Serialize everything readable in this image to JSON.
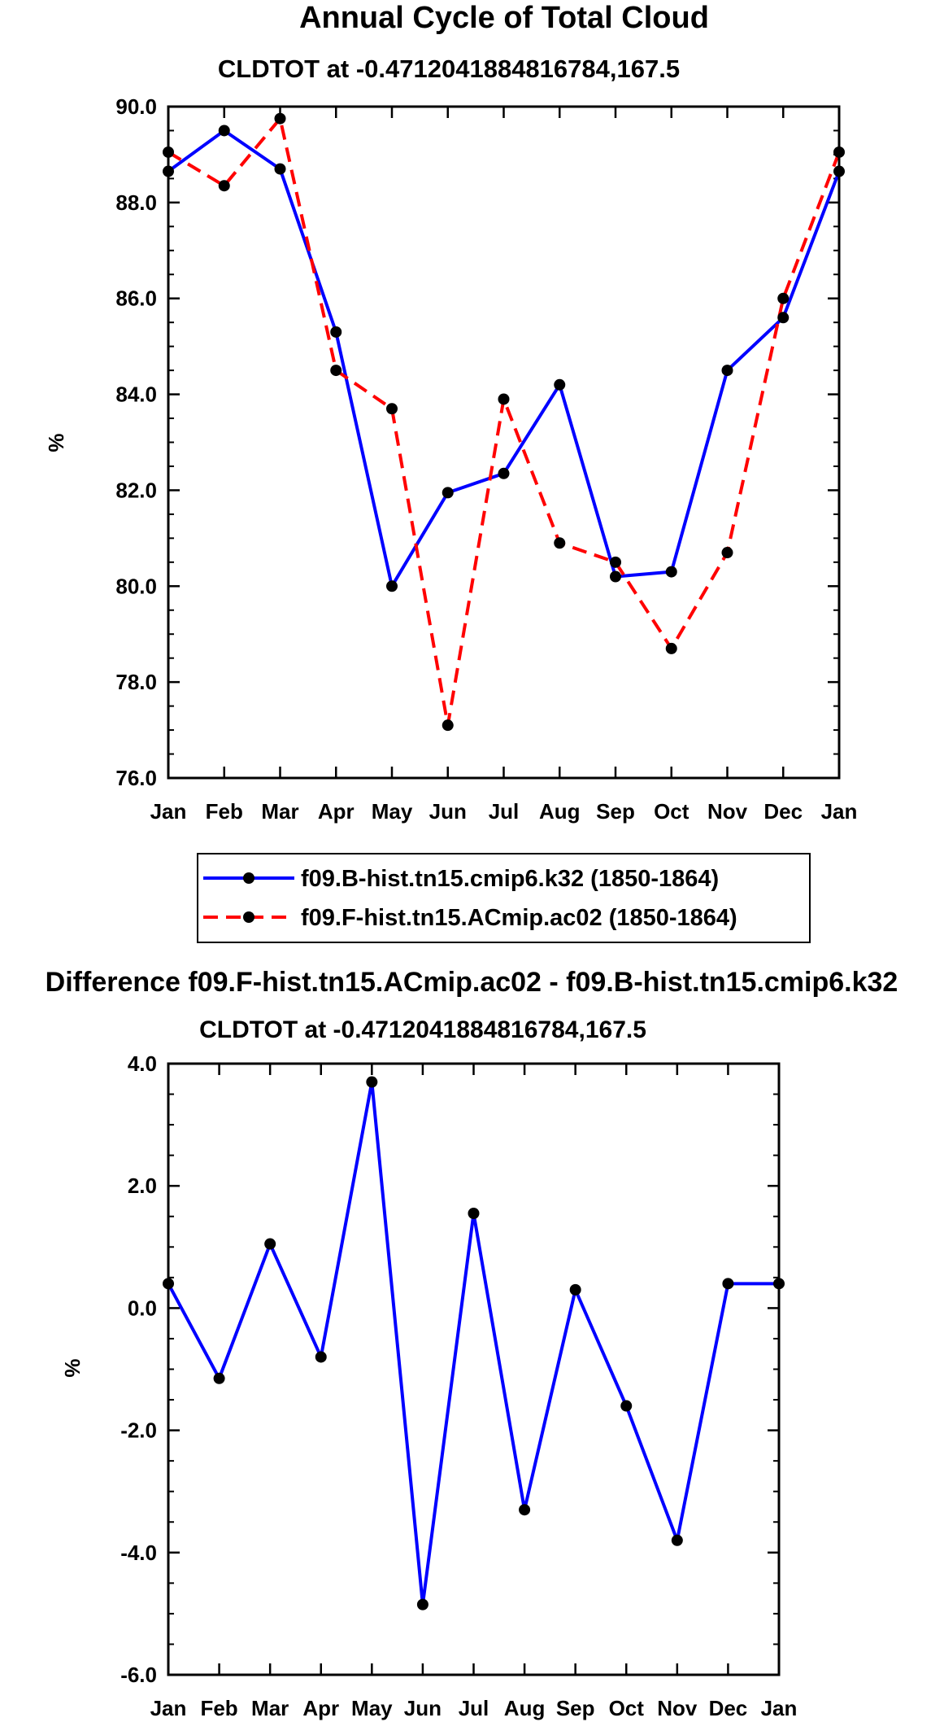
{
  "chart_data": [
    {
      "type": "line",
      "title": "Annual Cycle of Total Cloud",
      "subtitle": "CLDTOT at -0.4712041884816784,167.5",
      "xlabel": "",
      "ylabel": "%",
      "categories": [
        "Jan",
        "Feb",
        "Mar",
        "Apr",
        "May",
        "Jun",
        "Jul",
        "Aug",
        "Sep",
        "Oct",
        "Nov",
        "Dec",
        "Jan"
      ],
      "ylim": [
        76.0,
        90.0
      ],
      "yticks": [
        76.0,
        78.0,
        80.0,
        82.0,
        84.0,
        86.0,
        88.0,
        90.0
      ],
      "ytick_labels": [
        "76.0",
        "78.0",
        "80.0",
        "82.0",
        "84.0",
        "86.0",
        "88.0",
        "90.0"
      ],
      "legend_position": "bottom",
      "series": [
        {
          "name": "f09.B-hist.tn15.cmip6.k32 (1850-1864)",
          "color": "#0000ff",
          "dash": "solid",
          "values": [
            88.65,
            89.5,
            88.7,
            85.3,
            80.0,
            81.95,
            82.35,
            84.2,
            80.2,
            80.3,
            84.5,
            85.6,
            88.65
          ]
        },
        {
          "name": "f09.F-hist.tn15.ACmip.ac02 (1850-1864)",
          "color": "#ff0000",
          "dash": "dashed",
          "values": [
            89.05,
            88.35,
            89.75,
            84.5,
            83.7,
            77.1,
            83.9,
            80.9,
            80.5,
            78.7,
            80.7,
            86.0,
            89.05
          ]
        }
      ]
    },
    {
      "type": "line",
      "title": "Difference f09.F-hist.tn15.ACmip.ac02 - f09.B-hist.tn15.cmip6.k32",
      "subtitle": "CLDTOT at -0.4712041884816784,167.5",
      "xlabel": "",
      "ylabel": "%",
      "categories": [
        "Jan",
        "Feb",
        "Mar",
        "Apr",
        "May",
        "Jun",
        "Jul",
        "Aug",
        "Sep",
        "Oct",
        "Nov",
        "Dec",
        "Jan"
      ],
      "ylim": [
        -6.0,
        4.0
      ],
      "yticks": [
        -6.0,
        -4.0,
        -2.0,
        0.0,
        2.0,
        4.0
      ],
      "ytick_labels": [
        "-6.0",
        "-4.0",
        "-2.0",
        "0.0",
        "2.0",
        "4.0"
      ],
      "series": [
        {
          "name": "difference",
          "color": "#0000ff",
          "dash": "solid",
          "values": [
            0.4,
            -1.15,
            1.05,
            -0.8,
            3.7,
            -4.85,
            1.55,
            -3.3,
            0.3,
            -1.6,
            -3.8,
            0.4,
            0.4
          ]
        }
      ]
    }
  ]
}
